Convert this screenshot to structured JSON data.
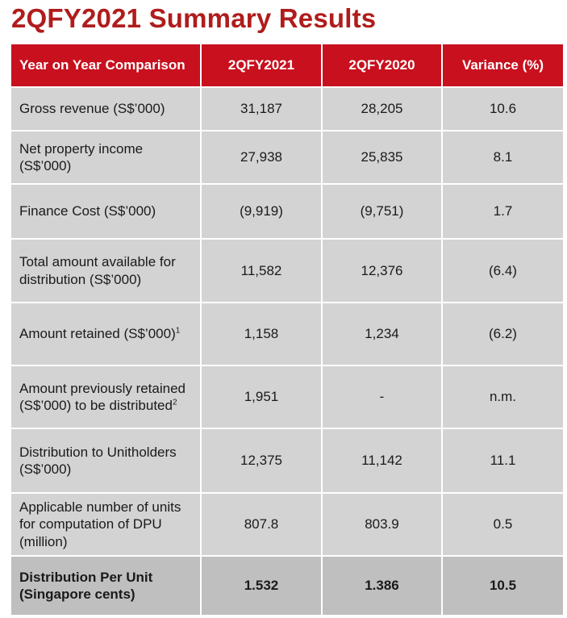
{
  "title": "2QFY2021 Summary Results",
  "header": {
    "col1": "Year on Year Comparison",
    "col2": "2QFY2021",
    "col3": "2QFY2020",
    "col4": "Variance (%)"
  },
  "rows": [
    {
      "label": "Gross revenue (S$’000)",
      "fy2021": "31,187",
      "fy2020": "28,205",
      "variance": "10.6"
    },
    {
      "label": "Net property income (S$’000)",
      "fy2021": "27,938",
      "fy2020": "25,835",
      "variance": "8.1"
    },
    {
      "label": "Finance Cost (S$’000)",
      "fy2021": "(9,919)",
      "fy2020": "(9,751)",
      "variance": "1.7"
    },
    {
      "label": "Total amount available for distribution (S$’000)",
      "fy2021": "11,582",
      "fy2020": "12,376",
      "variance": "(6.4)"
    },
    {
      "label": "Amount retained (S$’000)",
      "sup": "1",
      "fy2021": "1,158",
      "fy2020": "1,234",
      "variance": "(6.2)"
    },
    {
      "label": "Amount previously retained (S$’000) to be distributed",
      "sup": "2",
      "fy2021": "1,951",
      "fy2020": "-",
      "variance": "n.m."
    },
    {
      "label": "Distribution to Unitholders (S$’000)",
      "fy2021": "12,375",
      "fy2020": "11,142",
      "variance": "11.1"
    },
    {
      "label": "Applicable number of units for computation of DPU (million)",
      "fy2021": "807.8",
      "fy2020": "803.9",
      "variance": "0.5"
    },
    {
      "label": "Distribution Per Unit (Singapore cents)",
      "fy2021": "1.532",
      "fy2020": "1.386",
      "variance": "10.5"
    }
  ]
}
